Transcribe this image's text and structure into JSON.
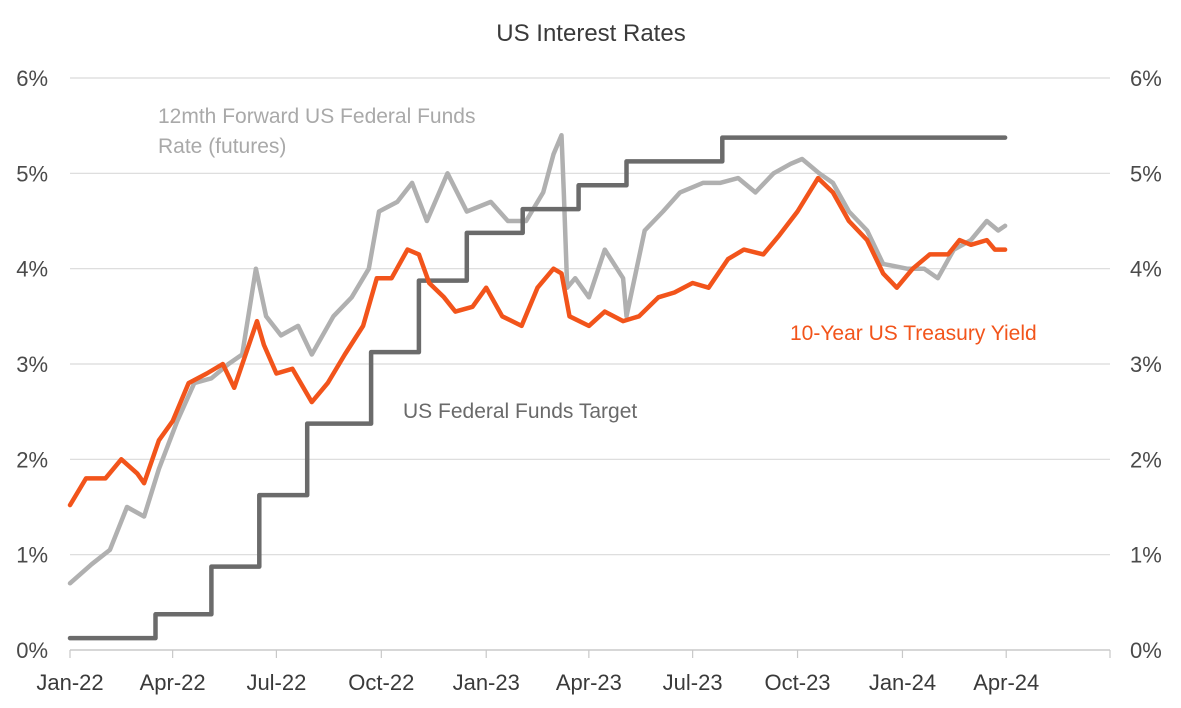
{
  "chart_data": {
    "type": "line",
    "title": "US Interest Rates",
    "xlabel": "",
    "ylabel": "",
    "x_ticks": [
      "Jan-22",
      "Apr-22",
      "Jul-22",
      "Oct-22",
      "Jan-23",
      "Apr-23",
      "Jul-23",
      "Oct-23",
      "Jan-24",
      "Apr-24"
    ],
    "y_ticks": [
      "0%",
      "1%",
      "2%",
      "3%",
      "4%",
      "5%",
      "6%"
    ],
    "ylim": [
      0,
      6
    ],
    "xlim": [
      "2022-01-01",
      "2024-07-01"
    ],
    "grid": "horizontal",
    "dual_y_axis": true,
    "series": [
      {
        "name": "US Federal Funds Target",
        "color": "#6b6b6b",
        "style": "step",
        "points": [
          [
            "2022-01-01",
            0.125
          ],
          [
            "2022-03-17",
            0.375
          ],
          [
            "2022-05-05",
            0.875
          ],
          [
            "2022-06-16",
            1.625
          ],
          [
            "2022-07-28",
            2.375
          ],
          [
            "2022-09-22",
            3.125
          ],
          [
            "2022-11-03",
            3.875
          ],
          [
            "2022-12-15",
            4.375
          ],
          [
            "2023-02-02",
            4.625
          ],
          [
            "2023-03-23",
            4.875
          ],
          [
            "2023-05-04",
            5.125
          ],
          [
            "2023-07-27",
            5.375
          ],
          [
            "2024-03-31",
            5.375
          ]
        ]
      },
      {
        "name": "12mth Forward US Federal Funds Rate (futures)",
        "color": "#b0b0b0",
        "style": "line",
        "points": [
          [
            "2022-01-01",
            0.7
          ],
          [
            "2022-01-20",
            0.9
          ],
          [
            "2022-02-05",
            1.05
          ],
          [
            "2022-02-20",
            1.5
          ],
          [
            "2022-03-07",
            1.4
          ],
          [
            "2022-03-20",
            1.9
          ],
          [
            "2022-04-05",
            2.4
          ],
          [
            "2022-04-20",
            2.8
          ],
          [
            "2022-05-05",
            2.85
          ],
          [
            "2022-05-20",
            3.0
          ],
          [
            "2022-06-01",
            3.1
          ],
          [
            "2022-06-13",
            4.0
          ],
          [
            "2022-06-22",
            3.5
          ],
          [
            "2022-07-05",
            3.3
          ],
          [
            "2022-07-20",
            3.4
          ],
          [
            "2022-08-01",
            3.1
          ],
          [
            "2022-08-20",
            3.5
          ],
          [
            "2022-09-05",
            3.7
          ],
          [
            "2022-09-20",
            4.0
          ],
          [
            "2022-09-29",
            4.6
          ],
          [
            "2022-10-15",
            4.7
          ],
          [
            "2022-10-28",
            4.9
          ],
          [
            "2022-11-10",
            4.5
          ],
          [
            "2022-11-28",
            5.0
          ],
          [
            "2022-12-15",
            4.6
          ],
          [
            "2023-01-05",
            4.7
          ],
          [
            "2023-01-20",
            4.5
          ],
          [
            "2023-02-05",
            4.5
          ],
          [
            "2023-02-20",
            4.8
          ],
          [
            "2023-03-01",
            5.2
          ],
          [
            "2023-03-08",
            5.4
          ],
          [
            "2023-03-10",
            4.8
          ],
          [
            "2023-03-13",
            3.8
          ],
          [
            "2023-03-20",
            3.9
          ],
          [
            "2023-04-01",
            3.7
          ],
          [
            "2023-04-15",
            4.2
          ],
          [
            "2023-05-01",
            3.9
          ],
          [
            "2023-05-04",
            3.5
          ],
          [
            "2023-05-20",
            4.4
          ],
          [
            "2023-06-05",
            4.6
          ],
          [
            "2023-06-20",
            4.8
          ],
          [
            "2023-07-10",
            4.9
          ],
          [
            "2023-07-25",
            4.9
          ],
          [
            "2023-08-10",
            4.95
          ],
          [
            "2023-08-25",
            4.8
          ],
          [
            "2023-09-10",
            5.0
          ],
          [
            "2023-09-25",
            5.1
          ],
          [
            "2023-10-05",
            5.15
          ],
          [
            "2023-10-20",
            5.0
          ],
          [
            "2023-11-01",
            4.9
          ],
          [
            "2023-11-15",
            4.6
          ],
          [
            "2023-12-01",
            4.4
          ],
          [
            "2023-12-15",
            4.05
          ],
          [
            "2024-01-05",
            4.0
          ],
          [
            "2024-01-20",
            4.0
          ],
          [
            "2024-02-01",
            3.9
          ],
          [
            "2024-02-15",
            4.2
          ],
          [
            "2024-03-01",
            4.3
          ],
          [
            "2024-03-15",
            4.5
          ],
          [
            "2024-03-25",
            4.4
          ],
          [
            "2024-03-31",
            4.45
          ]
        ]
      },
      {
        "name": "10-Year US Treasury Yield",
        "color": "#f2541b",
        "style": "line",
        "points": [
          [
            "2022-01-01",
            1.52
          ],
          [
            "2022-01-15",
            1.8
          ],
          [
            "2022-02-01",
            1.8
          ],
          [
            "2022-02-15",
            2.0
          ],
          [
            "2022-03-01",
            1.85
          ],
          [
            "2022-03-07",
            1.75
          ],
          [
            "2022-03-20",
            2.2
          ],
          [
            "2022-04-01",
            2.4
          ],
          [
            "2022-04-15",
            2.8
          ],
          [
            "2022-05-01",
            2.9
          ],
          [
            "2022-05-15",
            3.0
          ],
          [
            "2022-05-25",
            2.75
          ],
          [
            "2022-06-14",
            3.45
          ],
          [
            "2022-06-20",
            3.2
          ],
          [
            "2022-07-01",
            2.9
          ],
          [
            "2022-07-15",
            2.95
          ],
          [
            "2022-08-01",
            2.6
          ],
          [
            "2022-08-15",
            2.8
          ],
          [
            "2022-08-30",
            3.1
          ],
          [
            "2022-09-15",
            3.4
          ],
          [
            "2022-09-27",
            3.9
          ],
          [
            "2022-10-10",
            3.9
          ],
          [
            "2022-10-24",
            4.2
          ],
          [
            "2022-11-03",
            4.15
          ],
          [
            "2022-11-12",
            3.85
          ],
          [
            "2022-11-25",
            3.7
          ],
          [
            "2022-12-05",
            3.55
          ],
          [
            "2022-12-20",
            3.6
          ],
          [
            "2023-01-01",
            3.8
          ],
          [
            "2023-01-15",
            3.5
          ],
          [
            "2023-02-01",
            3.4
          ],
          [
            "2023-02-15",
            3.8
          ],
          [
            "2023-03-01",
            4.0
          ],
          [
            "2023-03-08",
            3.95
          ],
          [
            "2023-03-15",
            3.5
          ],
          [
            "2023-04-01",
            3.4
          ],
          [
            "2023-04-15",
            3.55
          ],
          [
            "2023-05-01",
            3.45
          ],
          [
            "2023-05-15",
            3.5
          ],
          [
            "2023-06-01",
            3.7
          ],
          [
            "2023-06-15",
            3.75
          ],
          [
            "2023-07-01",
            3.85
          ],
          [
            "2023-07-15",
            3.8
          ],
          [
            "2023-08-01",
            4.1
          ],
          [
            "2023-08-15",
            4.2
          ],
          [
            "2023-09-01",
            4.15
          ],
          [
            "2023-09-15",
            4.35
          ],
          [
            "2023-10-01",
            4.6
          ],
          [
            "2023-10-19",
            4.95
          ],
          [
            "2023-11-01",
            4.8
          ],
          [
            "2023-11-15",
            4.5
          ],
          [
            "2023-12-01",
            4.3
          ],
          [
            "2023-12-15",
            3.95
          ],
          [
            "2023-12-27",
            3.8
          ],
          [
            "2024-01-10",
            4.0
          ],
          [
            "2024-01-25",
            4.15
          ],
          [
            "2024-02-10",
            4.15
          ],
          [
            "2024-02-20",
            4.3
          ],
          [
            "2024-03-01",
            4.25
          ],
          [
            "2024-03-15",
            4.3
          ],
          [
            "2024-03-22",
            4.2
          ],
          [
            "2024-03-31",
            4.2
          ]
        ]
      }
    ],
    "annotations": [
      {
        "id": "futures_label_1",
        "text": "12mth Forward US Federal Funds"
      },
      {
        "id": "futures_label_2",
        "text": "Rate (futures)"
      },
      {
        "id": "target_label",
        "text": "US Federal Funds Target"
      },
      {
        "id": "treasury_label",
        "text": "10-Year US Treasury Yield"
      }
    ]
  }
}
